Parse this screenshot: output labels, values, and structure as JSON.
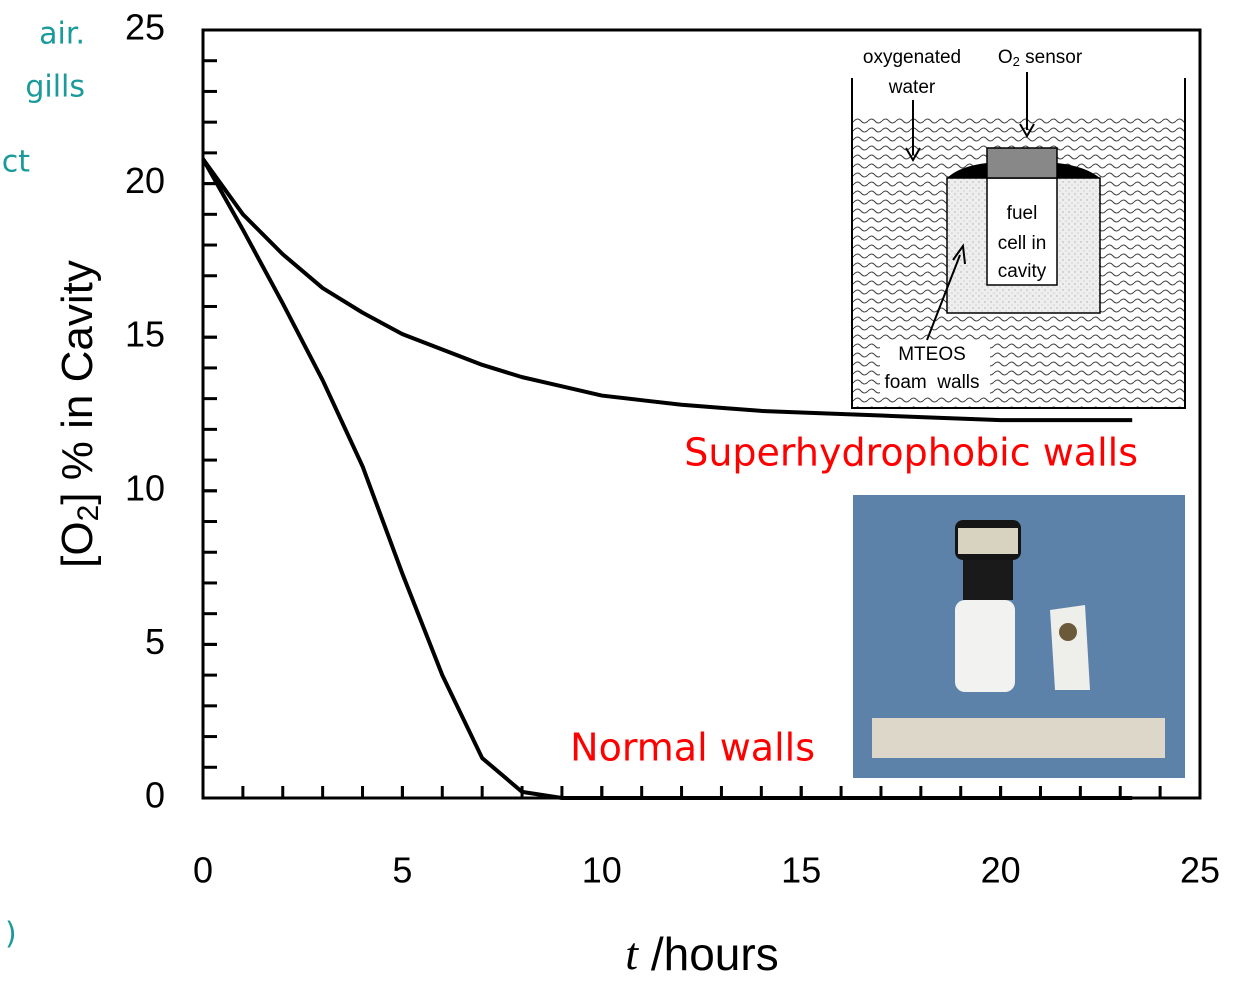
{
  "chart_data": {
    "type": "line",
    "x_label": {
      "italic": "t",
      "rest": " /hours"
    },
    "y_label": {
      "pre": "[O",
      "sub": "2",
      "post": "] % in Cavity"
    },
    "xlim": [
      0,
      25
    ],
    "ylim": [
      0,
      25
    ],
    "xticks": [
      0,
      5,
      10,
      15,
      20,
      25
    ],
    "yticks": [
      0,
      5,
      10,
      15,
      20,
      25
    ],
    "minor_tick_step": 1,
    "label_color": "#ff0000",
    "series": [
      {
        "name": "Superhydrophobic walls",
        "color": "#000000",
        "x": [
          0,
          1,
          2,
          3,
          4,
          5,
          6,
          7,
          8,
          9,
          10,
          11,
          12,
          13,
          14,
          15,
          16,
          17,
          18,
          19,
          20,
          21,
          22,
          23.3
        ],
        "values": [
          20.8,
          19.0,
          17.7,
          16.6,
          15.8,
          15.1,
          14.6,
          14.1,
          13.7,
          13.4,
          13.1,
          12.95,
          12.8,
          12.7,
          12.6,
          12.55,
          12.5,
          12.45,
          12.4,
          12.35,
          12.3,
          12.3,
          12.3,
          12.3
        ]
      },
      {
        "name": "Normal walls",
        "color": "#000000",
        "x": [
          0,
          1,
          2,
          3,
          4,
          5,
          6,
          7,
          8,
          9,
          10,
          12,
          14,
          16,
          18,
          20,
          22,
          23.3
        ],
        "values": [
          20.8,
          18.5,
          16.1,
          13.6,
          10.8,
          7.3,
          4.0,
          1.3,
          0.2,
          0,
          0,
          0,
          0,
          0,
          0,
          0,
          0,
          0
        ]
      }
    ]
  },
  "inset": {
    "water_label": [
      "oxygenated",
      "water"
    ],
    "sensor_label": {
      "pre": "O",
      "sub": "2",
      "post": " sensor"
    },
    "cell_label": [
      "fuel",
      "cell in",
      "cavity"
    ],
    "foam_label": [
      "MTEOS",
      "foam  walls"
    ]
  },
  "background_text": [
    "air.",
    "gills",
    "ct",
    ")"
  ]
}
